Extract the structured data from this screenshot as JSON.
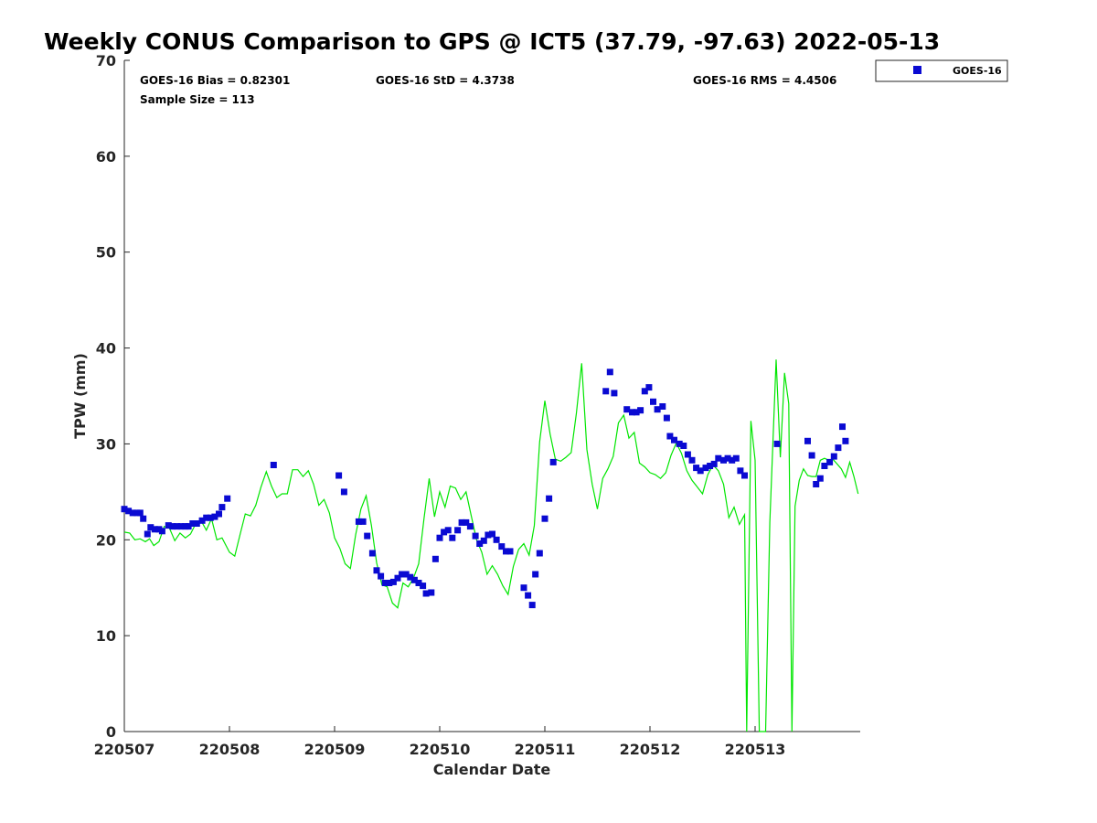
{
  "chart_data": {
    "type": "scatter",
    "title": "Weekly CONUS Comparison to GPS @ ICT5 (37.79, -97.63) 2022-05-13",
    "xlabel": "Calendar Date",
    "ylabel": "TPW (mm)",
    "xlim": [
      0,
      7
    ],
    "ylim": [
      0,
      70
    ],
    "x_ticks": [
      0,
      1,
      2,
      3,
      4,
      5,
      6
    ],
    "x_tick_labels": [
      "220507",
      "220508",
      "220509",
      "220510",
      "220511",
      "220512",
      "220513"
    ],
    "y_ticks": [
      0,
      10,
      20,
      30,
      40,
      50,
      60,
      70
    ],
    "y_tick_labels": [
      "0",
      "10",
      "20",
      "30",
      "40",
      "50",
      "60",
      "70"
    ],
    "grid": false,
    "legend_position": "top-right",
    "stats": {
      "bias": "GOES-16 Bias = 0.82301",
      "std": "GOES-16 StD = 4.3738",
      "rms": "GOES-16 RMS = 4.4506",
      "sample": "Sample Size = 113"
    },
    "series": [
      {
        "name": "GOES-16",
        "marker": "square",
        "color": "#0a0ad2",
        "points": [
          [
            0.0,
            23.2
          ],
          [
            0.04,
            23.0
          ],
          [
            0.08,
            22.8
          ],
          [
            0.12,
            22.8
          ],
          [
            0.15,
            22.8
          ],
          [
            0.18,
            22.2
          ],
          [
            0.22,
            20.6
          ],
          [
            0.25,
            21.3
          ],
          [
            0.29,
            21.1
          ],
          [
            0.33,
            21.1
          ],
          [
            0.36,
            20.9
          ],
          [
            0.42,
            21.5
          ],
          [
            0.46,
            21.4
          ],
          [
            0.5,
            21.4
          ],
          [
            0.54,
            21.4
          ],
          [
            0.58,
            21.4
          ],
          [
            0.61,
            21.4
          ],
          [
            0.65,
            21.7
          ],
          [
            0.69,
            21.7
          ],
          [
            0.74,
            22.0
          ],
          [
            0.78,
            22.3
          ],
          [
            0.82,
            22.3
          ],
          [
            0.86,
            22.4
          ],
          [
            0.9,
            22.7
          ],
          [
            0.93,
            23.4
          ],
          [
            0.98,
            24.3
          ],
          [
            1.42,
            27.8
          ],
          [
            2.04,
            26.7
          ],
          [
            2.09,
            25.0
          ],
          [
            2.23,
            21.9
          ],
          [
            2.27,
            21.9
          ],
          [
            2.31,
            20.4
          ],
          [
            2.36,
            18.6
          ],
          [
            2.4,
            16.8
          ],
          [
            2.44,
            16.2
          ],
          [
            2.48,
            15.5
          ],
          [
            2.52,
            15.5
          ],
          [
            2.56,
            15.6
          ],
          [
            2.6,
            16.0
          ],
          [
            2.64,
            16.4
          ],
          [
            2.68,
            16.4
          ],
          [
            2.72,
            16.1
          ],
          [
            2.76,
            15.8
          ],
          [
            2.8,
            15.5
          ],
          [
            2.84,
            15.2
          ],
          [
            2.87,
            14.4
          ],
          [
            2.92,
            14.5
          ],
          [
            2.96,
            18.0
          ],
          [
            3.0,
            20.2
          ],
          [
            3.04,
            20.8
          ],
          [
            3.08,
            21.0
          ],
          [
            3.12,
            20.2
          ],
          [
            3.17,
            21.0
          ],
          [
            3.21,
            21.8
          ],
          [
            3.25,
            21.8
          ],
          [
            3.29,
            21.4
          ],
          [
            3.34,
            20.4
          ],
          [
            3.38,
            19.6
          ],
          [
            3.42,
            19.9
          ],
          [
            3.46,
            20.5
          ],
          [
            3.5,
            20.6
          ],
          [
            3.54,
            20.0
          ],
          [
            3.59,
            19.3
          ],
          [
            3.63,
            18.8
          ],
          [
            3.67,
            18.8
          ],
          [
            3.8,
            15.0
          ],
          [
            3.84,
            14.2
          ],
          [
            3.88,
            13.2
          ],
          [
            3.91,
            16.4
          ],
          [
            3.95,
            18.6
          ],
          [
            4.0,
            22.2
          ],
          [
            4.04,
            24.3
          ],
          [
            4.08,
            28.1
          ],
          [
            4.58,
            35.5
          ],
          [
            4.62,
            37.5
          ],
          [
            4.66,
            35.3
          ],
          [
            4.78,
            33.6
          ],
          [
            4.83,
            33.3
          ],
          [
            4.87,
            33.3
          ],
          [
            4.91,
            33.5
          ],
          [
            4.95,
            35.5
          ],
          [
            4.99,
            35.9
          ],
          [
            5.03,
            34.4
          ],
          [
            5.07,
            33.6
          ],
          [
            5.12,
            33.9
          ],
          [
            5.16,
            32.7
          ],
          [
            5.19,
            30.8
          ],
          [
            5.23,
            30.4
          ],
          [
            5.28,
            30.0
          ],
          [
            5.32,
            29.8
          ],
          [
            5.36,
            28.9
          ],
          [
            5.4,
            28.3
          ],
          [
            5.44,
            27.5
          ],
          [
            5.48,
            27.2
          ],
          [
            5.53,
            27.5
          ],
          [
            5.57,
            27.7
          ],
          [
            5.61,
            27.9
          ],
          [
            5.65,
            28.5
          ],
          [
            5.7,
            28.3
          ],
          [
            5.74,
            28.5
          ],
          [
            5.78,
            28.3
          ],
          [
            5.82,
            28.5
          ],
          [
            5.86,
            27.2
          ],
          [
            5.9,
            26.7
          ],
          [
            6.21,
            30.0
          ],
          [
            6.5,
            30.3
          ],
          [
            6.54,
            28.8
          ],
          [
            6.58,
            25.8
          ],
          [
            6.62,
            26.4
          ],
          [
            6.66,
            27.7
          ],
          [
            6.71,
            28.1
          ],
          [
            6.75,
            28.7
          ],
          [
            6.79,
            29.6
          ],
          [
            6.83,
            31.8
          ],
          [
            6.86,
            30.3
          ]
        ]
      },
      {
        "name": "",
        "marker": "line",
        "color": "#00e600",
        "points": [
          [
            0.0,
            20.8
          ],
          [
            0.05,
            20.7
          ],
          [
            0.1,
            20.0
          ],
          [
            0.15,
            20.1
          ],
          [
            0.2,
            19.8
          ],
          [
            0.24,
            20.1
          ],
          [
            0.28,
            19.4
          ],
          [
            0.33,
            19.8
          ],
          [
            0.38,
            21.4
          ],
          [
            0.43,
            21.2
          ],
          [
            0.48,
            19.9
          ],
          [
            0.53,
            20.7
          ],
          [
            0.58,
            20.2
          ],
          [
            0.63,
            20.6
          ],
          [
            0.68,
            21.7
          ],
          [
            0.73,
            22.0
          ],
          [
            0.78,
            21.0
          ],
          [
            0.83,
            22.2
          ],
          [
            0.88,
            20.0
          ],
          [
            0.93,
            20.2
          ],
          [
            1.0,
            18.7
          ],
          [
            1.05,
            18.3
          ],
          [
            1.1,
            20.5
          ],
          [
            1.15,
            22.7
          ],
          [
            1.2,
            22.5
          ],
          [
            1.25,
            23.6
          ],
          [
            1.3,
            25.5
          ],
          [
            1.35,
            27.1
          ],
          [
            1.4,
            25.6
          ],
          [
            1.45,
            24.4
          ],
          [
            1.5,
            24.8
          ],
          [
            1.55,
            24.8
          ],
          [
            1.6,
            27.3
          ],
          [
            1.65,
            27.3
          ],
          [
            1.7,
            26.6
          ],
          [
            1.75,
            27.2
          ],
          [
            1.8,
            25.8
          ],
          [
            1.85,
            23.6
          ],
          [
            1.9,
            24.2
          ],
          [
            1.95,
            22.8
          ],
          [
            2.0,
            20.2
          ],
          [
            2.05,
            19.1
          ],
          [
            2.1,
            17.5
          ],
          [
            2.15,
            17.0
          ],
          [
            2.2,
            20.5
          ],
          [
            2.25,
            23.2
          ],
          [
            2.3,
            24.6
          ],
          [
            2.35,
            21.5
          ],
          [
            2.4,
            17.6
          ],
          [
            2.45,
            15.3
          ],
          [
            2.5,
            15.1
          ],
          [
            2.55,
            13.4
          ],
          [
            2.6,
            12.9
          ],
          [
            2.65,
            15.5
          ],
          [
            2.7,
            15.1
          ],
          [
            2.75,
            16.0
          ],
          [
            2.8,
            17.5
          ],
          [
            2.85,
            22.2
          ],
          [
            2.9,
            26.4
          ],
          [
            2.95,
            22.4
          ],
          [
            3.0,
            25.0
          ],
          [
            3.05,
            23.4
          ],
          [
            3.1,
            25.6
          ],
          [
            3.15,
            25.4
          ],
          [
            3.2,
            24.2
          ],
          [
            3.25,
            25.0
          ],
          [
            3.3,
            22.5
          ],
          [
            3.35,
            20.0
          ],
          [
            3.4,
            18.7
          ],
          [
            3.45,
            16.4
          ],
          [
            3.5,
            17.3
          ],
          [
            3.55,
            16.4
          ],
          [
            3.6,
            15.2
          ],
          [
            3.65,
            14.3
          ],
          [
            3.7,
            17.2
          ],
          [
            3.75,
            19.0
          ],
          [
            3.8,
            19.6
          ],
          [
            3.85,
            18.4
          ],
          [
            3.9,
            21.5
          ],
          [
            3.95,
            30.2
          ],
          [
            4.0,
            34.5
          ],
          [
            4.05,
            31.0
          ],
          [
            4.1,
            28.4
          ],
          [
            4.15,
            28.2
          ],
          [
            4.2,
            28.6
          ],
          [
            4.25,
            29.1
          ],
          [
            4.3,
            33.2
          ],
          [
            4.35,
            38.4
          ],
          [
            4.4,
            29.4
          ],
          [
            4.45,
            25.8
          ],
          [
            4.5,
            23.2
          ],
          [
            4.55,
            26.4
          ],
          [
            4.6,
            27.4
          ],
          [
            4.65,
            28.7
          ],
          [
            4.7,
            32.2
          ],
          [
            4.75,
            33.0
          ],
          [
            4.8,
            30.6
          ],
          [
            4.85,
            31.2
          ],
          [
            4.9,
            28.0
          ],
          [
            4.95,
            27.6
          ],
          [
            5.0,
            27.0
          ],
          [
            5.05,
            26.8
          ],
          [
            5.1,
            26.4
          ],
          [
            5.15,
            27.0
          ],
          [
            5.2,
            28.8
          ],
          [
            5.25,
            30.1
          ],
          [
            5.3,
            29.0
          ],
          [
            5.35,
            27.2
          ],
          [
            5.4,
            26.2
          ],
          [
            5.45,
            25.5
          ],
          [
            5.5,
            24.8
          ],
          [
            5.55,
            26.8
          ],
          [
            5.6,
            27.8
          ],
          [
            5.65,
            27.2
          ],
          [
            5.7,
            25.8
          ],
          [
            5.75,
            22.3
          ],
          [
            5.8,
            23.4
          ],
          [
            5.85,
            21.6
          ],
          [
            5.9,
            22.6
          ],
          [
            5.92,
            0.0
          ],
          [
            5.96,
            32.4
          ],
          [
            6.0,
            28.3
          ],
          [
            6.04,
            0.0
          ],
          [
            6.1,
            0.0
          ],
          [
            6.14,
            21.8
          ],
          [
            6.2,
            38.8
          ],
          [
            6.24,
            28.6
          ],
          [
            6.28,
            37.4
          ],
          [
            6.32,
            34.2
          ],
          [
            6.35,
            0.0
          ],
          [
            6.38,
            23.5
          ],
          [
            6.42,
            26.2
          ],
          [
            6.46,
            27.4
          ],
          [
            6.5,
            26.7
          ],
          [
            6.54,
            26.6
          ],
          [
            6.58,
            26.6
          ],
          [
            6.62,
            28.3
          ],
          [
            6.66,
            28.5
          ],
          [
            6.7,
            28.3
          ],
          [
            6.74,
            28.4
          ],
          [
            6.78,
            27.9
          ],
          [
            6.82,
            27.4
          ],
          [
            6.86,
            26.5
          ],
          [
            6.9,
            28.1
          ],
          [
            6.94,
            26.6
          ],
          [
            6.98,
            24.8
          ]
        ]
      }
    ]
  }
}
